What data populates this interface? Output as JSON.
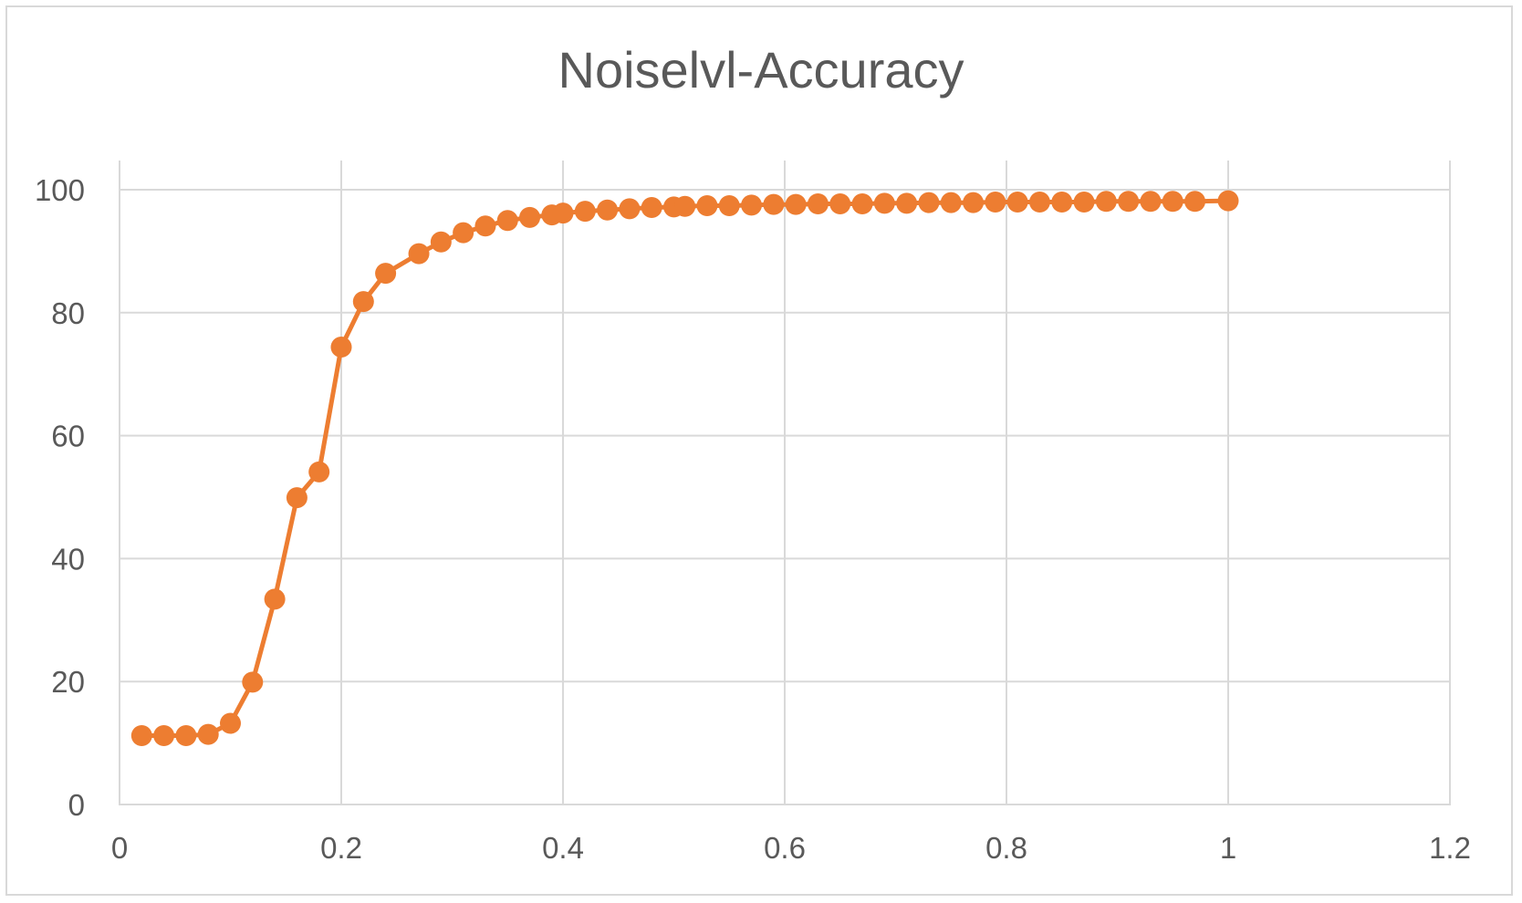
{
  "chart_data": {
    "type": "scatter",
    "title": "Noiselvl-Accuracy",
    "xlabel": "",
    "ylabel": "",
    "xlim": [
      0,
      1.2
    ],
    "ylim": [
      0,
      100
    ],
    "x_ticks": [
      "0",
      "0.2",
      "0.4",
      "0.6",
      "0.8",
      "1",
      "1.2"
    ],
    "y_ticks": [
      "0",
      "20",
      "40",
      "60",
      "80",
      "100"
    ],
    "grid": true,
    "legend": "none",
    "series": [
      {
        "color": "#ed7d31",
        "x": [
          0.02,
          0.04,
          0.06,
          0.08,
          0.1,
          0.12,
          0.14,
          0.16,
          0.18,
          0.2,
          0.22,
          0.24,
          0.27,
          0.29,
          0.31,
          0.33,
          0.35,
          0.37,
          0.39,
          0.4,
          0.42,
          0.44,
          0.46,
          0.48,
          0.5,
          0.51,
          0.53,
          0.55,
          0.57,
          0.59,
          0.61,
          0.63,
          0.65,
          0.67,
          0.69,
          0.71,
          0.73,
          0.75,
          0.77,
          0.79,
          0.81,
          0.83,
          0.85,
          0.87,
          0.89,
          0.91,
          0.93,
          0.95,
          0.97,
          1.0
        ],
        "y": [
          11.2,
          11.2,
          11.2,
          11.4,
          13.2,
          19.9,
          33.4,
          49.9,
          54.1,
          74.4,
          81.8,
          86.4,
          89.6,
          91.5,
          93.0,
          94.1,
          95.0,
          95.5,
          95.9,
          96.2,
          96.5,
          96.7,
          96.9,
          97.1,
          97.2,
          97.3,
          97.4,
          97.4,
          97.5,
          97.6,
          97.6,
          97.7,
          97.7,
          97.7,
          97.8,
          97.8,
          97.9,
          97.9,
          97.9,
          98.0,
          98.0,
          98.0,
          98.0,
          98.0,
          98.1,
          98.1,
          98.1,
          98.1,
          98.1,
          98.2
        ]
      }
    ]
  }
}
